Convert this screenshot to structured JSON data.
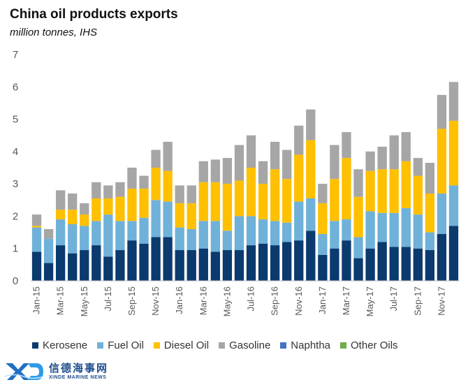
{
  "chart_data": {
    "type": "bar",
    "stacked": true,
    "title": "China oil products exports",
    "subtitle": "million tonnes, IHS",
    "ylim": [
      0,
      7
    ],
    "yticks": [
      0,
      1,
      2,
      3,
      4,
      5,
      6,
      7
    ],
    "grid": false,
    "legend_position": "bottom",
    "categories": [
      "Jan-15",
      "Feb-15",
      "Mar-15",
      "Apr-15",
      "May-15",
      "Jun-15",
      "Jul-15",
      "Aug-15",
      "Sep-15",
      "Oct-15",
      "Nov-15",
      "Dec-15",
      "Jan-16",
      "Feb-16",
      "Mar-16",
      "Apr-16",
      "May-16",
      "Jun-16",
      "Jul-16",
      "Aug-16",
      "Sep-16",
      "Oct-16",
      "Nov-16",
      "Dec-16",
      "Jan-17",
      "Feb-17",
      "Mar-17",
      "Apr-17",
      "May-17",
      "Jun-17",
      "Jul-17",
      "Aug-17",
      "Sep-17",
      "Oct-17",
      "Nov-17",
      "Dec-17"
    ],
    "tick_labels": [
      "Jan-15",
      "",
      "Mar-15",
      "",
      "May-15",
      "",
      "Jul-15",
      "",
      "Sep-15",
      "",
      "Nov-15",
      "",
      "Jan-16",
      "",
      "Mar-16",
      "",
      "May-16",
      "",
      "Jul-16",
      "",
      "Sep-16",
      "",
      "Nov-16",
      "",
      "Jan-17",
      "",
      "Mar-17",
      "",
      "May-17",
      "",
      "Jul-17",
      "",
      "Sep-17",
      "",
      "Nov-17",
      ""
    ],
    "series": [
      {
        "name": "Kerosene",
        "color": "#0b3a6e",
        "values": [
          0.9,
          0.55,
          1.1,
          0.85,
          0.95,
          1.1,
          0.75,
          0.95,
          1.25,
          1.15,
          1.35,
          1.35,
          0.95,
          0.95,
          1.0,
          0.9,
          0.95,
          0.95,
          1.1,
          1.15,
          1.1,
          1.2,
          1.25,
          1.55,
          0.8,
          1.0,
          1.25,
          0.7,
          1.0,
          1.2,
          1.05,
          1.05,
          1.0,
          0.95,
          1.45,
          1.7
        ]
      },
      {
        "name": "Fuel Oil",
        "color": "#6fb1d9",
        "values": [
          0.75,
          0.75,
          0.8,
          0.9,
          0.75,
          0.75,
          1.3,
          0.9,
          0.6,
          0.8,
          1.15,
          1.1,
          0.7,
          0.65,
          0.85,
          0.95,
          0.6,
          1.05,
          0.9,
          0.75,
          0.75,
          0.6,
          1.2,
          1.0,
          0.65,
          0.85,
          0.65,
          0.65,
          1.15,
          0.9,
          1.05,
          1.2,
          1.05,
          0.55,
          1.25,
          1.25
        ]
      },
      {
        "name": "Diesel Oil",
        "color": "#ffc000",
        "values": [
          0.05,
          0.0,
          0.3,
          0.45,
          0.35,
          0.7,
          0.5,
          0.75,
          1.0,
          0.9,
          1.0,
          0.95,
          0.75,
          0.8,
          1.2,
          1.2,
          1.45,
          1.1,
          1.5,
          1.1,
          1.6,
          1.35,
          1.45,
          1.8,
          0.95,
          1.3,
          1.9,
          1.25,
          1.25,
          1.35,
          1.35,
          1.45,
          1.2,
          1.2,
          2.0,
          2.0
        ]
      },
      {
        "name": "Gasoline",
        "color": "#a6a6a6",
        "values": [
          0.35,
          0.3,
          0.6,
          0.5,
          0.35,
          0.5,
          0.4,
          0.45,
          0.65,
          0.4,
          0.55,
          0.9,
          0.55,
          0.55,
          0.65,
          0.7,
          0.8,
          1.1,
          1.0,
          0.7,
          0.85,
          0.9,
          0.9,
          0.95,
          0.6,
          1.05,
          0.8,
          0.85,
          0.6,
          0.7,
          1.05,
          0.9,
          0.55,
          0.95,
          1.05,
          1.2
        ]
      },
      {
        "name": "Naphtha",
        "color": "#4472c4",
        "values": [
          0,
          0,
          0,
          0,
          0,
          0,
          0,
          0,
          0,
          0,
          0,
          0,
          0,
          0,
          0,
          0,
          0,
          0,
          0,
          0,
          0,
          0,
          0,
          0,
          0,
          0,
          0,
          0,
          0,
          0,
          0,
          0,
          0,
          0,
          0,
          0
        ]
      },
      {
        "name": "Other Oils",
        "color": "#70ad47",
        "values": [
          0,
          0,
          0,
          0,
          0,
          0,
          0,
          0,
          0,
          0,
          0,
          0,
          0,
          0,
          0,
          0,
          0,
          0,
          0,
          0,
          0,
          0,
          0,
          0,
          0,
          0,
          0,
          0,
          0,
          0,
          0,
          0,
          0,
          0,
          0,
          0
        ]
      }
    ]
  },
  "logo": {
    "chinese": "信德海事网",
    "english": "XINDE MARINE NEWS"
  }
}
